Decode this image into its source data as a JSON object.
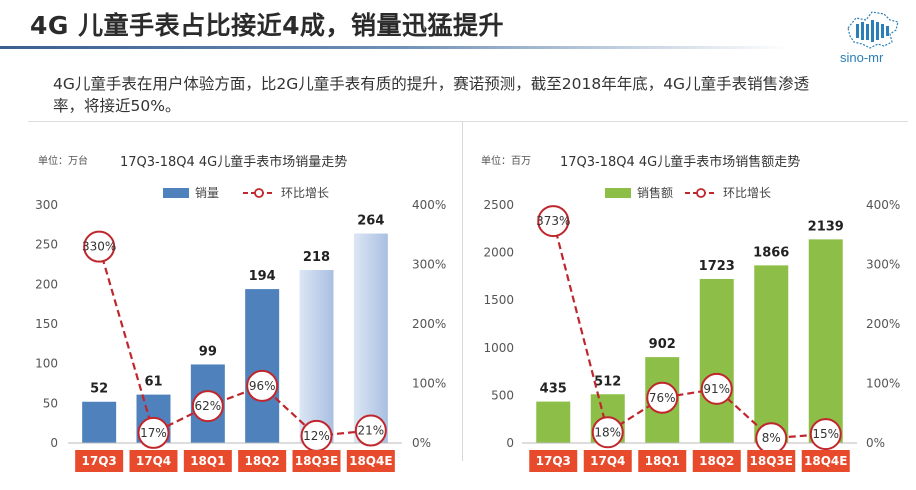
{
  "header": {
    "title": "4G 儿童手表占比接近4成，销量迅猛提升",
    "logo_text": "sino-mr",
    "description": "4G儿童手表在用户体验方面，比2G儿童手表有质的提升，赛诺预测，截至2018年年底，4G儿童手表销售渗透率，将接近50%。"
  },
  "colors": {
    "bar_blue": "#4f81bd",
    "bar_blue_light": "#b8cbe8",
    "bar_green": "#8dbf48",
    "line_red": "#c0272d",
    "cat_bg": "#e84a2c"
  },
  "chart_data": [
    {
      "type": "bar",
      "unit": "单位：万台",
      "title": "17Q3-18Q4 4G儿童手表市场销量走势",
      "categories": [
        "17Q3",
        "17Q4",
        "18Q1",
        "18Q2",
        "18Q3E",
        "18Q4E"
      ],
      "series": [
        {
          "name": "销量",
          "values": [
            52,
            61,
            99,
            194,
            218,
            264
          ],
          "axis": "left"
        },
        {
          "name": "环比增长",
          "values": [
            330,
            17,
            62,
            96,
            12,
            21
          ],
          "value_labels": [
            "330%",
            "17%",
            "62%",
            "96%",
            "12%",
            "21%"
          ],
          "axis": "right",
          "style": "dashed-line"
        }
      ],
      "ylim": [
        0,
        300
      ],
      "yticks": [
        0,
        50,
        100,
        150,
        200,
        250,
        300
      ],
      "y2lim": [
        0,
        400
      ],
      "y2ticks": [
        "0%",
        "100%",
        "200%",
        "300%",
        "400%"
      ],
      "bar_labels": [
        "52",
        "61",
        "99",
        "194",
        "218",
        "264"
      ],
      "forecast_from": 4,
      "legend_position": "top"
    },
    {
      "type": "bar",
      "unit": "单位：百万",
      "title": "17Q3-18Q4 4G儿童手表市场销售额走势",
      "categories": [
        "17Q3",
        "17Q4",
        "18Q1",
        "18Q2",
        "18Q3E",
        "18Q4E"
      ],
      "series": [
        {
          "name": "销售额",
          "values": [
            435,
            512,
            902,
            1723,
            1866,
            2139
          ],
          "axis": "left"
        },
        {
          "name": "环比增长",
          "values": [
            373,
            18,
            76,
            91,
            8,
            15
          ],
          "value_labels": [
            "373%",
            "18%",
            "76%",
            "91%",
            "8%",
            "15%"
          ],
          "axis": "right",
          "style": "dashed-line"
        }
      ],
      "ylim": [
        0,
        2500
      ],
      "yticks": [
        0,
        500,
        1000,
        1500,
        2000,
        2500
      ],
      "y2lim": [
        0,
        400
      ],
      "y2ticks": [
        "0%",
        "100%",
        "200%",
        "300%",
        "400%"
      ],
      "bar_labels": [
        "435",
        "512",
        "902",
        "1723",
        "1866",
        "2139"
      ],
      "forecast_from": null,
      "legend_position": "top"
    }
  ]
}
